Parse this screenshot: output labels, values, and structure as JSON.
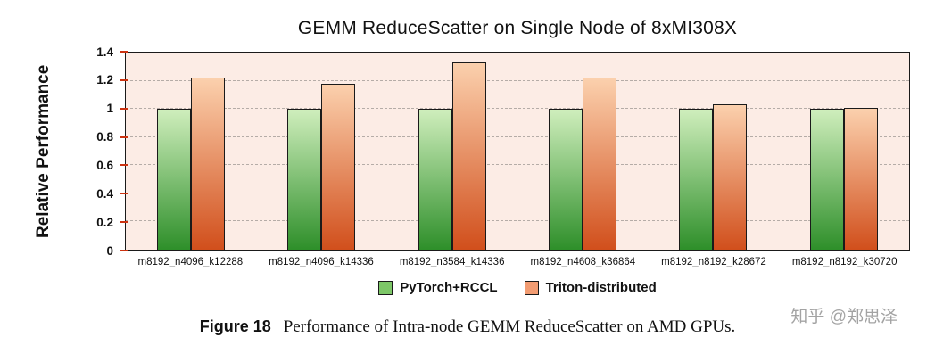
{
  "chart_data": {
    "type": "bar",
    "title": "GEMM ReduceScatter on Single Node of 8xMI308X",
    "ylabel": "Relative Performance",
    "xlabel": "",
    "ylim": [
      0,
      1.4
    ],
    "yticks": [
      0,
      0.2,
      0.4,
      0.6,
      0.8,
      1,
      1.2,
      1.4
    ],
    "grid": true,
    "legend_position": "bottom",
    "plot_bg": "#fcece5",
    "categories": [
      "m8192_n4096_k12288",
      "m8192_n4096_k14336",
      "m8192_n3584_k14336",
      "m8192_n4608_k36864",
      "m8192_n8192_k28672",
      "m8192_n8192_k30720"
    ],
    "series": [
      {
        "name": "PyTorch+RCCL",
        "values": [
          1.0,
          1.0,
          1.0,
          1.0,
          1.0,
          1.0
        ],
        "gradient_top": "#cfeebc",
        "gradient_bottom": "#2e8f2a",
        "legend_color": "#7dc768"
      },
      {
        "name": "Triton-distributed",
        "values": [
          1.22,
          1.18,
          1.33,
          1.22,
          1.03,
          1.01
        ],
        "gradient_top": "#fbd0ad",
        "gradient_bottom": "#d14f1c",
        "legend_color": "#f29c72"
      }
    ]
  },
  "caption": {
    "label": "Figure 18",
    "text": "Performance of Intra-node GEMM ReduceScatter on AMD GPUs."
  },
  "watermark": "知乎 @郑思泽"
}
